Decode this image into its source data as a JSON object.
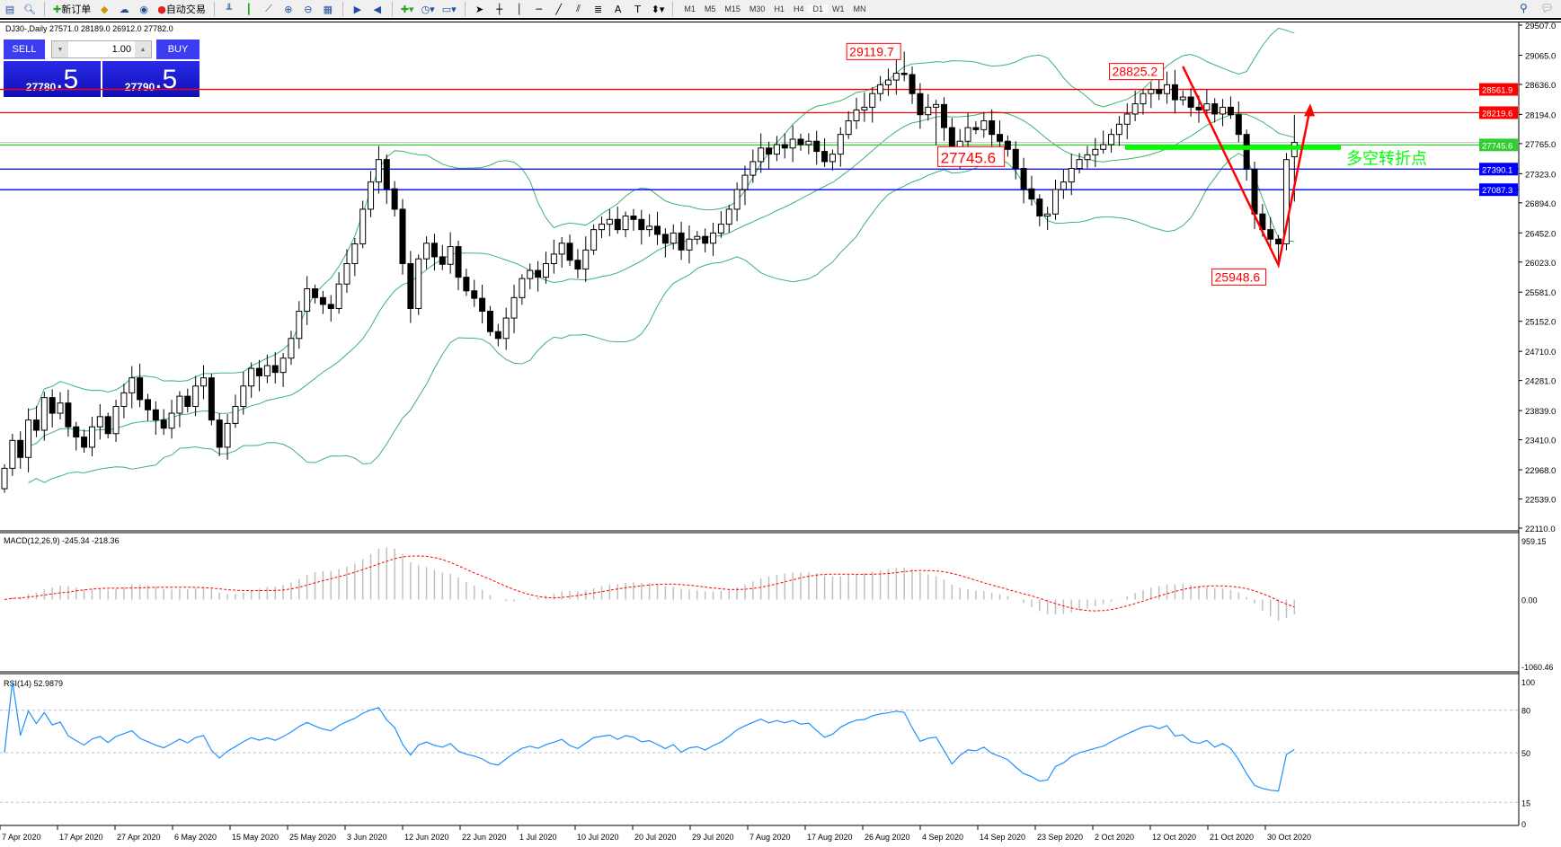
{
  "toolbar": {
    "new_order": "新订单",
    "auto_trading": "自动交易",
    "timeframes": [
      "M1",
      "M5",
      "M15",
      "M30",
      "H1",
      "H4",
      "D1",
      "W1",
      "MN"
    ],
    "active_timeframe": "D1"
  },
  "chart_title": "DJ30-,Daily  27571.0 28189.0 26912.0 27782.0",
  "trade_panel": {
    "sell_label": "SELL",
    "buy_label": "BUY",
    "lot": "1.00",
    "sell_main": "27780",
    "sell_frac": ".5",
    "buy_main": "27790",
    "buy_frac": ".5"
  },
  "chart_data": {
    "type": "candlestick",
    "symbol": "DJ30-",
    "timeframe": "Daily",
    "closes": [
      22990,
      23400,
      23150,
      23700,
      23550,
      24030,
      23800,
      23950,
      23600,
      23450,
      23300,
      23600,
      23750,
      23500,
      23900,
      24100,
      24320,
      24000,
      23850,
      23700,
      23580,
      23800,
      24050,
      23900,
      24200,
      24320,
      23700,
      23300,
      23650,
      23900,
      24200,
      24460,
      24350,
      24500,
      24400,
      24610,
      24900,
      25300,
      25630,
      25500,
      25400,
      25340,
      25700,
      26000,
      26290,
      26800,
      27200,
      27530,
      27100,
      26800,
      26000,
      25340,
      26070,
      26300,
      26100,
      25990,
      26250,
      25800,
      25600,
      25490,
      25300,
      25000,
      24900,
      25200,
      25500,
      25780,
      25900,
      25800,
      26000,
      26140,
      26300,
      26050,
      25920,
      26200,
      26500,
      26580,
      26650,
      26500,
      26700,
      26650,
      26500,
      26550,
      26430,
      26300,
      26450,
      26200,
      26360,
      26400,
      26300,
      26450,
      26580,
      26800,
      27090,
      27300,
      27500,
      27700,
      27610,
      27750,
      27700,
      27830,
      27750,
      27800,
      27650,
      27500,
      27610,
      27900,
      28100,
      28260,
      28300,
      28500,
      28630,
      28700,
      28800,
      28780,
      28500,
      28190,
      28300,
      28340,
      28000,
      27530,
      27800,
      28000,
      27970,
      28100,
      27900,
      27800,
      27680,
      27400,
      27100,
      26950,
      26700,
      26730,
      27090,
      27200,
      27400,
      27530,
      27600,
      27680,
      27750,
      27900,
      28050,
      28200,
      28350,
      28500,
      28560,
      28500,
      28630,
      28410,
      28450,
      28300,
      28260,
      28350,
      28200,
      28300,
      28190,
      27900,
      27390,
      26730,
      26500,
      26360,
      26290,
      27530,
      27782
    ],
    "last_bar": {
      "open": 27571.0,
      "high": 28189.0,
      "low": 26912.0,
      "close": 27782.0
    },
    "price_axis_ticks": [
      "29507.0",
      "29065.0",
      "28636.0",
      "28194.0",
      "27765.0",
      "27323.0",
      "26894.0",
      "26452.0",
      "26023.0",
      "25581.0",
      "25152.0",
      "24710.0",
      "24281.0",
      "23839.0",
      "23410.0",
      "22968.0",
      "22539.0",
      "22110.0"
    ],
    "price_range": [
      22110,
      29507
    ],
    "x_tick_labels": [
      "7 Apr 2020",
      "17 Apr 2020",
      "27 Apr 2020",
      "6 May 2020",
      "15 May 2020",
      "25 May 2020",
      "3 Jun 2020",
      "12 Jun 2020",
      "22 Jun 2020",
      "1 Jul 2020",
      "10 Jul 2020",
      "20 Jul 2020",
      "29 Jul 2020",
      "7 Aug 2020",
      "17 Aug 2020",
      "26 Aug 2020",
      "4 Sep 2020",
      "14 Sep 2020",
      "23 Sep 2020",
      "2 Oct 2020",
      "12 Oct 2020",
      "21 Oct 2020",
      "30 Oct 2020"
    ],
    "indicator_bollinger": {
      "period": 20,
      "deviation": 2,
      "color": "#3cb371"
    },
    "hlines": [
      {
        "value": 28561.9,
        "label": "28561.9",
        "color": "#ff0000"
      },
      {
        "value": 28219.6,
        "label": "28219.6",
        "color": "#ff0000"
      },
      {
        "value": 27745.6,
        "label": "27745.6",
        "color": "#32cd32"
      },
      {
        "value": 27390.1,
        "label": "27390.1",
        "color": "#0000ff"
      },
      {
        "value": 27087.3,
        "label": "27087.3",
        "color": "#0000ff"
      }
    ],
    "annotations": [
      {
        "text": "29119.7",
        "price": 29119.7,
        "bar": 113
      },
      {
        "text": "28825.2",
        "price": 28825.2,
        "bar": 146
      },
      {
        "text": "27745.6",
        "price": 27745.6,
        "bar": 117,
        "large": true
      },
      {
        "text": "25948.6",
        "price": 25948.6,
        "bar": 160
      }
    ],
    "pivot_text": "多空转折点",
    "pivot_color": "#00ff00",
    "arrow_path": [
      {
        "bar": 148,
        "price": 28900
      },
      {
        "bar": 160,
        "price": 25980
      },
      {
        "bar": 164,
        "price": 28300
      }
    ],
    "macd": {
      "label": "MACD(12,26,9) -245.34 -218.36",
      "ticks": [
        "959.15",
        "0.00",
        "-1060.46"
      ],
      "range": [
        -1060.46,
        959.15
      ],
      "histogram_color": "#c0c0c0",
      "signal_color": "#ff0000"
    },
    "rsi": {
      "label": "RSI(14) 52.9879",
      "ticks": [
        "100",
        "80",
        "50",
        "15",
        "0"
      ],
      "levels": [
        80,
        50,
        15
      ],
      "color": "#1e90ff"
    }
  }
}
